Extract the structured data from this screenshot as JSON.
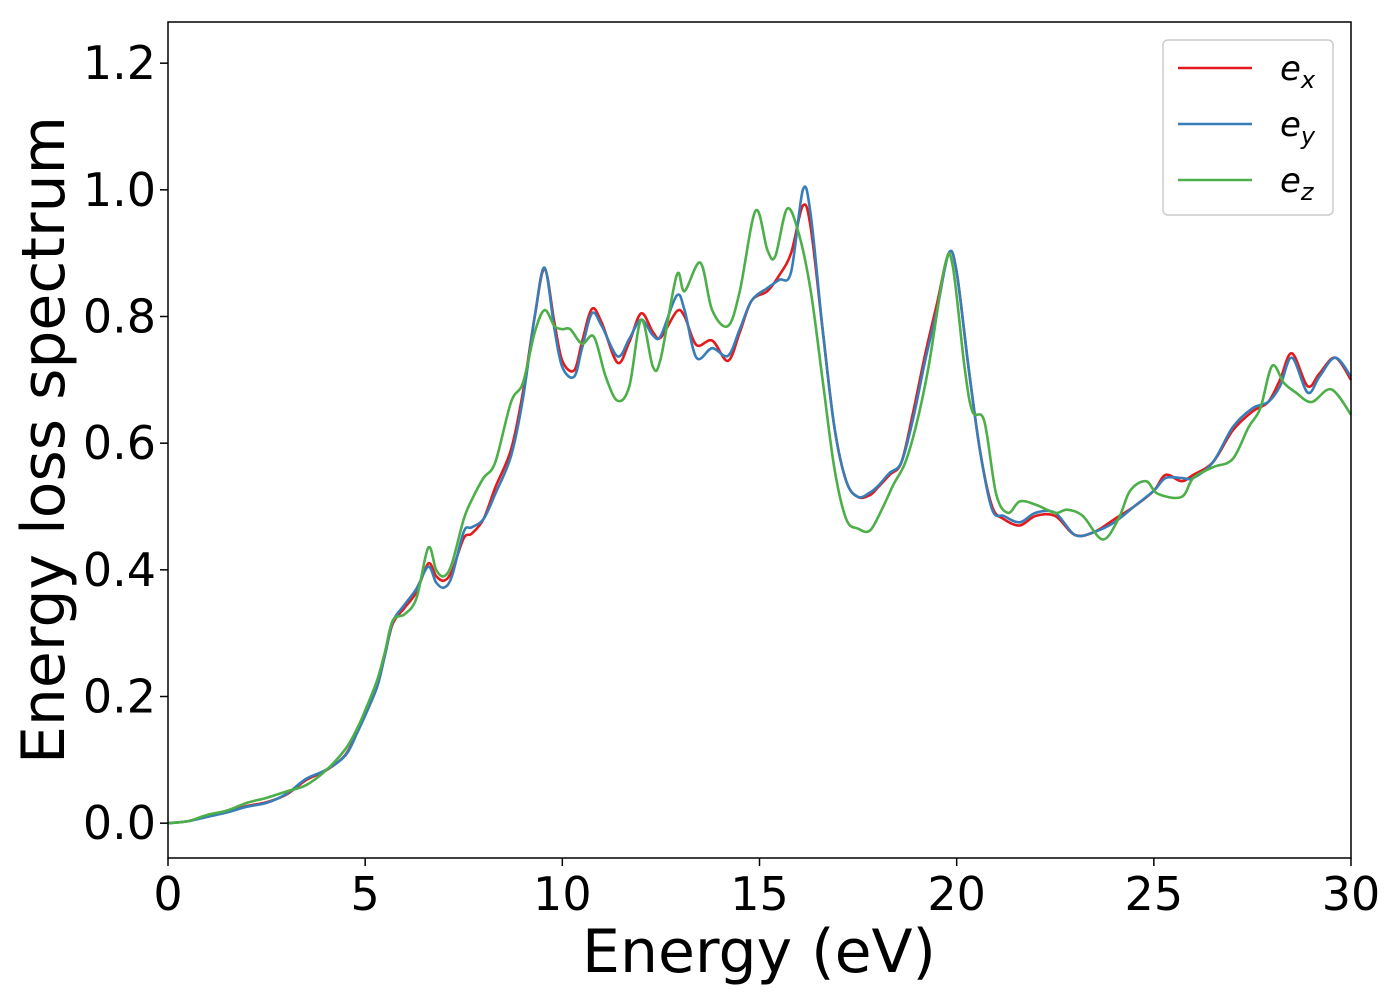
{
  "chart_data": {
    "type": "line",
    "title": "",
    "xlabel": "Energy (eV)",
    "ylabel": "Energy loss spectrum",
    "xlim": [
      0,
      30
    ],
    "ylim": [
      -0.055,
      1.265
    ],
    "x_ticks": [
      0,
      5,
      10,
      15,
      20,
      25,
      30
    ],
    "y_ticks": [
      0.0,
      0.2,
      0.4,
      0.6,
      0.8,
      1.0,
      1.2
    ],
    "y_tick_labels": [
      "0.0",
      "0.2",
      "0.4",
      "0.6",
      "0.8",
      "1.0",
      "1.2"
    ],
    "grid": false,
    "legend_position": "top-right",
    "series": [
      {
        "name": "e_x",
        "label_base": "e",
        "label_sub": "x",
        "color": "#e41a1c",
        "points": [
          [
            0,
            0
          ],
          [
            0.5,
            0.003
          ],
          [
            1,
            0.011
          ],
          [
            1.5,
            0.018
          ],
          [
            2,
            0.027
          ],
          [
            2.5,
            0.033
          ],
          [
            3,
            0.045
          ],
          [
            3.5,
            0.068
          ],
          [
            4,
            0.083
          ],
          [
            4.5,
            0.108
          ],
          [
            4.8,
            0.145
          ],
          [
            5,
            0.172
          ],
          [
            5.3,
            0.215
          ],
          [
            5.5,
            0.265
          ],
          [
            5.7,
            0.315
          ],
          [
            6,
            0.34
          ],
          [
            6.3,
            0.365
          ],
          [
            6.6,
            0.41
          ],
          [
            6.8,
            0.39
          ],
          [
            7,
            0.383
          ],
          [
            7.2,
            0.398
          ],
          [
            7.5,
            0.45
          ],
          [
            7.7,
            0.457
          ],
          [
            8,
            0.48
          ],
          [
            8.3,
            0.53
          ],
          [
            8.7,
            0.59
          ],
          [
            9,
            0.68
          ],
          [
            9.3,
            0.8
          ],
          [
            9.55,
            0.875
          ],
          [
            9.8,
            0.79
          ],
          [
            10,
            0.73
          ],
          [
            10.3,
            0.715
          ],
          [
            10.5,
            0.76
          ],
          [
            10.75,
            0.812
          ],
          [
            11,
            0.79
          ],
          [
            11.4,
            0.727
          ],
          [
            11.7,
            0.76
          ],
          [
            12,
            0.805
          ],
          [
            12.3,
            0.775
          ],
          [
            12.5,
            0.767
          ],
          [
            12.9,
            0.808
          ],
          [
            13.1,
            0.8
          ],
          [
            13.4,
            0.755
          ],
          [
            13.8,
            0.762
          ],
          [
            14.2,
            0.73
          ],
          [
            14.5,
            0.775
          ],
          [
            14.8,
            0.825
          ],
          [
            15.2,
            0.84
          ],
          [
            15.5,
            0.865
          ],
          [
            15.8,
            0.9
          ],
          [
            16.1,
            0.975
          ],
          [
            16.3,
            0.94
          ],
          [
            16.6,
            0.78
          ],
          [
            16.9,
            0.625
          ],
          [
            17.2,
            0.54
          ],
          [
            17.5,
            0.515
          ],
          [
            17.8,
            0.518
          ],
          [
            18,
            0.53
          ],
          [
            18.3,
            0.55
          ],
          [
            18.6,
            0.57
          ],
          [
            18.9,
            0.65
          ],
          [
            19.2,
            0.74
          ],
          [
            19.5,
            0.82
          ],
          [
            19.8,
            0.9
          ],
          [
            20,
            0.87
          ],
          [
            20.3,
            0.72
          ],
          [
            20.6,
            0.585
          ],
          [
            20.9,
            0.5
          ],
          [
            21.2,
            0.48
          ],
          [
            21.6,
            0.47
          ],
          [
            22,
            0.485
          ],
          [
            22.5,
            0.485
          ],
          [
            23,
            0.455
          ],
          [
            23.5,
            0.46
          ],
          [
            24,
            0.48
          ],
          [
            24.5,
            0.5
          ],
          [
            25,
            0.525
          ],
          [
            25.3,
            0.55
          ],
          [
            25.7,
            0.54
          ],
          [
            26,
            0.55
          ],
          [
            26.5,
            0.57
          ],
          [
            27,
            0.62
          ],
          [
            27.5,
            0.65
          ],
          [
            27.9,
            0.665
          ],
          [
            28.2,
            0.7
          ],
          [
            28.5,
            0.742
          ],
          [
            28.9,
            0.69
          ],
          [
            29.2,
            0.71
          ],
          [
            29.6,
            0.735
          ],
          [
            30,
            0.7
          ]
        ]
      },
      {
        "name": "e_y",
        "label_base": "e",
        "label_sub": "y",
        "color": "#377eb8",
        "points": [
          [
            0,
            0
          ],
          [
            0.5,
            0.003
          ],
          [
            1,
            0.01
          ],
          [
            1.5,
            0.017
          ],
          [
            2,
            0.026
          ],
          [
            2.5,
            0.032
          ],
          [
            3,
            0.046
          ],
          [
            3.5,
            0.07
          ],
          [
            4,
            0.084
          ],
          [
            4.5,
            0.107
          ],
          [
            4.8,
            0.143
          ],
          [
            5,
            0.17
          ],
          [
            5.3,
            0.215
          ],
          [
            5.5,
            0.265
          ],
          [
            5.7,
            0.318
          ],
          [
            6,
            0.345
          ],
          [
            6.3,
            0.37
          ],
          [
            6.6,
            0.405
          ],
          [
            6.8,
            0.38
          ],
          [
            7,
            0.372
          ],
          [
            7.2,
            0.39
          ],
          [
            7.5,
            0.46
          ],
          [
            7.7,
            0.467
          ],
          [
            8,
            0.48
          ],
          [
            8.3,
            0.52
          ],
          [
            8.7,
            0.58
          ],
          [
            9,
            0.67
          ],
          [
            9.3,
            0.8
          ],
          [
            9.55,
            0.877
          ],
          [
            9.8,
            0.78
          ],
          [
            10,
            0.72
          ],
          [
            10.3,
            0.705
          ],
          [
            10.5,
            0.75
          ],
          [
            10.75,
            0.805
          ],
          [
            11,
            0.785
          ],
          [
            11.4,
            0.737
          ],
          [
            11.7,
            0.765
          ],
          [
            12,
            0.795
          ],
          [
            12.3,
            0.77
          ],
          [
            12.5,
            0.77
          ],
          [
            12.9,
            0.833
          ],
          [
            13.1,
            0.81
          ],
          [
            13.4,
            0.735
          ],
          [
            13.8,
            0.75
          ],
          [
            14.2,
            0.738
          ],
          [
            14.5,
            0.78
          ],
          [
            14.8,
            0.825
          ],
          [
            15.2,
            0.845
          ],
          [
            15.5,
            0.858
          ],
          [
            15.8,
            0.87
          ],
          [
            16.1,
            1.0
          ],
          [
            16.3,
            0.96
          ],
          [
            16.6,
            0.78
          ],
          [
            16.9,
            0.625
          ],
          [
            17.2,
            0.54
          ],
          [
            17.5,
            0.515
          ],
          [
            17.8,
            0.522
          ],
          [
            18,
            0.532
          ],
          [
            18.3,
            0.553
          ],
          [
            18.6,
            0.57
          ],
          [
            18.9,
            0.64
          ],
          [
            19.2,
            0.73
          ],
          [
            19.5,
            0.81
          ],
          [
            19.8,
            0.9
          ],
          [
            20,
            0.87
          ],
          [
            20.3,
            0.72
          ],
          [
            20.6,
            0.585
          ],
          [
            20.9,
            0.495
          ],
          [
            21.2,
            0.485
          ],
          [
            21.6,
            0.475
          ],
          [
            22,
            0.49
          ],
          [
            22.5,
            0.49
          ],
          [
            23,
            0.455
          ],
          [
            23.5,
            0.46
          ],
          [
            24,
            0.475
          ],
          [
            24.5,
            0.5
          ],
          [
            25,
            0.525
          ],
          [
            25.3,
            0.545
          ],
          [
            25.7,
            0.545
          ],
          [
            26,
            0.545
          ],
          [
            26.5,
            0.57
          ],
          [
            27,
            0.625
          ],
          [
            27.5,
            0.655
          ],
          [
            27.9,
            0.665
          ],
          [
            28.2,
            0.69
          ],
          [
            28.5,
            0.735
          ],
          [
            28.9,
            0.68
          ],
          [
            29.2,
            0.705
          ],
          [
            29.6,
            0.735
          ],
          [
            30,
            0.705
          ]
        ]
      },
      {
        "name": "e_z",
        "label_base": "e",
        "label_sub": "z",
        "color": "#4daf4a",
        "points": [
          [
            0,
            0
          ],
          [
            0.5,
            0.003
          ],
          [
            1,
            0.013
          ],
          [
            1.5,
            0.02
          ],
          [
            2,
            0.032
          ],
          [
            2.5,
            0.04
          ],
          [
            3,
            0.05
          ],
          [
            3.5,
            0.06
          ],
          [
            4,
            0.083
          ],
          [
            4.5,
            0.117
          ],
          [
            4.8,
            0.15
          ],
          [
            5,
            0.178
          ],
          [
            5.3,
            0.225
          ],
          [
            5.5,
            0.27
          ],
          [
            5.7,
            0.32
          ],
          [
            6,
            0.33
          ],
          [
            6.3,
            0.355
          ],
          [
            6.6,
            0.435
          ],
          [
            6.8,
            0.4
          ],
          [
            7,
            0.39
          ],
          [
            7.2,
            0.41
          ],
          [
            7.5,
            0.48
          ],
          [
            7.7,
            0.51
          ],
          [
            8,
            0.545
          ],
          [
            8.3,
            0.57
          ],
          [
            8.7,
            0.665
          ],
          [
            9,
            0.695
          ],
          [
            9.3,
            0.775
          ],
          [
            9.55,
            0.81
          ],
          [
            9.8,
            0.785
          ],
          [
            10,
            0.78
          ],
          [
            10.2,
            0.78
          ],
          [
            10.5,
            0.757
          ],
          [
            10.8,
            0.768
          ],
          [
            11.1,
            0.705
          ],
          [
            11.4,
            0.667
          ],
          [
            11.7,
            0.69
          ],
          [
            12,
            0.795
          ],
          [
            12.3,
            0.72
          ],
          [
            12.5,
            0.735
          ],
          [
            12.9,
            0.865
          ],
          [
            13.1,
            0.84
          ],
          [
            13.5,
            0.885
          ],
          [
            13.8,
            0.81
          ],
          [
            14.2,
            0.785
          ],
          [
            14.5,
            0.84
          ],
          [
            14.9,
            0.967
          ],
          [
            15.2,
            0.905
          ],
          [
            15.4,
            0.895
          ],
          [
            15.7,
            0.97
          ],
          [
            16,
            0.93
          ],
          [
            16.3,
            0.84
          ],
          [
            16.6,
            0.7
          ],
          [
            16.9,
            0.56
          ],
          [
            17.2,
            0.48
          ],
          [
            17.5,
            0.465
          ],
          [
            17.8,
            0.462
          ],
          [
            18.1,
            0.495
          ],
          [
            18.4,
            0.535
          ],
          [
            18.7,
            0.57
          ],
          [
            19,
            0.635
          ],
          [
            19.3,
            0.725
          ],
          [
            19.7,
            0.88
          ],
          [
            19.9,
            0.88
          ],
          [
            20.2,
            0.72
          ],
          [
            20.4,
            0.65
          ],
          [
            20.7,
            0.635
          ],
          [
            21,
            0.52
          ],
          [
            21.3,
            0.49
          ],
          [
            21.6,
            0.508
          ],
          [
            22,
            0.503
          ],
          [
            22.5,
            0.49
          ],
          [
            22.8,
            0.495
          ],
          [
            23.2,
            0.485
          ],
          [
            23.7,
            0.448
          ],
          [
            24.1,
            0.48
          ],
          [
            24.4,
            0.525
          ],
          [
            24.8,
            0.54
          ],
          [
            25.1,
            0.52
          ],
          [
            25.7,
            0.515
          ],
          [
            26,
            0.545
          ],
          [
            26.5,
            0.562
          ],
          [
            27,
            0.575
          ],
          [
            27.4,
            0.625
          ],
          [
            27.7,
            0.655
          ],
          [
            28,
            0.722
          ],
          [
            28.3,
            0.695
          ],
          [
            28.6,
            0.68
          ],
          [
            29,
            0.665
          ],
          [
            29.5,
            0.685
          ],
          [
            30,
            0.645
          ]
        ]
      }
    ]
  }
}
